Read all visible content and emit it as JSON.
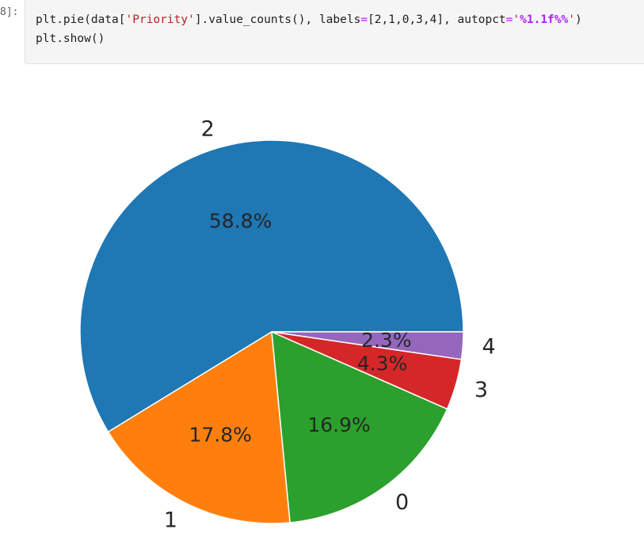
{
  "cell": {
    "prompt": "8]:",
    "code": {
      "line1": {
        "p1": "plt.pie(data[",
        "s1": "'Priority'",
        "p2": "].value_counts(), labels",
        "eq1": "=",
        "p3": "[2,1,0,3,4], autopct",
        "eq2": "=",
        "s2a": "'",
        "fmt": "%1.1f%%",
        "s2b": "'",
        "p4": ")"
      },
      "line2": "plt.show()"
    }
  },
  "colors": {
    "blue": "#1f77b4",
    "orange": "#ff7f0e",
    "green": "#2ca02c",
    "red": "#d62728",
    "purple": "#9467bd"
  },
  "chart_data": {
    "type": "pie",
    "labels": [
      "2",
      "1",
      "0",
      "3",
      "4"
    ],
    "values": [
      58.8,
      17.8,
      16.9,
      4.3,
      2.3
    ],
    "pct_labels": [
      "58.8%",
      "17.8%",
      "16.9%",
      "4.3%",
      "2.3%"
    ],
    "colors": [
      "#1f77b4",
      "#ff7f0e",
      "#2ca02c",
      "#d62728",
      "#9467bd"
    ],
    "start_angle_deg": 0,
    "direction": "counterclockwise",
    "legend": "none"
  }
}
